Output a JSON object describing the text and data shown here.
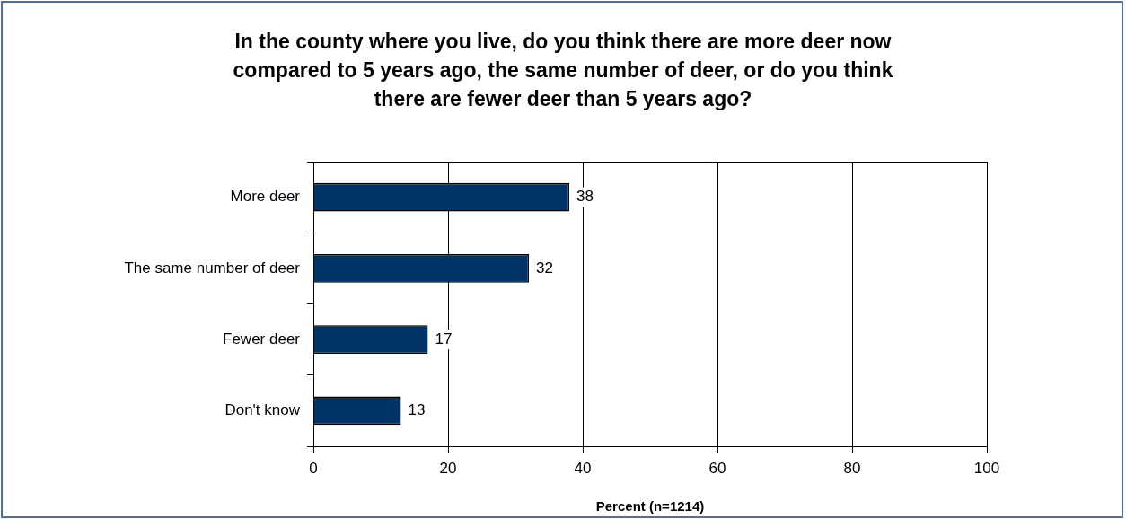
{
  "chart_data": {
    "type": "bar",
    "orientation": "horizontal",
    "title": "In the county where you live, do you think there are more deer now compared to 5 years ago, the same number of deer, or do you think there are fewer deer than 5 years ago?",
    "xlabel": "Percent (n=1214)",
    "categories": [
      "More deer",
      "The same number of deer",
      "Fewer deer",
      "Don't know"
    ],
    "values": [
      38,
      32,
      17,
      13
    ],
    "color": "#003366",
    "xlim": [
      0,
      100
    ],
    "xticks": [
      0,
      20,
      40,
      60,
      80,
      100
    ],
    "grid": "x",
    "data_labels": true
  }
}
